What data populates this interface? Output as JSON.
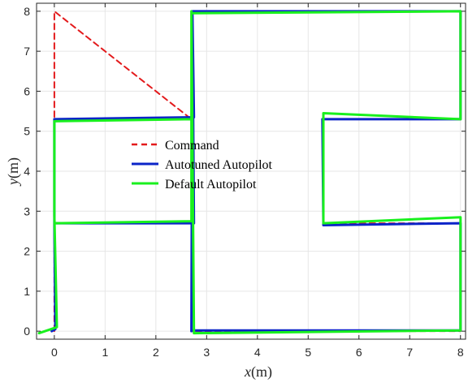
{
  "chart_data": {
    "type": "line",
    "xlabel": "x(m)",
    "ylabel": "y(m)",
    "xlabel_italic": "x",
    "xlabel_rest": "(m)",
    "ylabel_italic": "y",
    "ylabel_rest": "(m)",
    "xlim": [
      -0.35,
      8.1
    ],
    "ylim": [
      -0.2,
      8.2
    ],
    "xticks": [
      0,
      1,
      2,
      3,
      4,
      5,
      6,
      7,
      8
    ],
    "yticks": [
      0,
      1,
      2,
      3,
      4,
      5,
      6,
      7,
      8
    ],
    "grid": true,
    "legend_position": "center",
    "series": [
      {
        "name": "Command",
        "color": "#e31a1c",
        "style": "dashed",
        "x": [
          0,
          0,
          0,
          0,
          0,
          2.7,
          2.7,
          8,
          8,
          5.3,
          5.3,
          8,
          8,
          2.7,
          2.7,
          0
        ],
        "y": [
          0,
          2.7,
          2.7,
          5.3,
          8,
          5.3,
          8,
          8,
          5.3,
          5.3,
          2.7,
          2.7,
          0,
          0,
          2.7,
          2.7
        ]
      },
      {
        "name": "Autotuned Autopilot",
        "color": "#0b24c8",
        "style": "solid",
        "x": [
          -0.05,
          0.02,
          0.0,
          0.0,
          2.75,
          2.72,
          2.7,
          2.75,
          8.0,
          8.0,
          5.3,
          5.28,
          8.0,
          8.0,
          2.72,
          2.75,
          0.0
        ],
        "y": [
          0.0,
          0.05,
          2.7,
          5.3,
          5.35,
          8.0,
          0.0,
          0.02,
          0.02,
          2.7,
          2.65,
          5.3,
          5.3,
          8.0,
          8.0,
          2.7,
          2.7
        ]
      },
      {
        "name": "Default Autopilot",
        "color": "#19f01e",
        "style": "solid",
        "x": [
          -0.3,
          0.05,
          0.0,
          0.0,
          2.7,
          2.7,
          2.75,
          8.0,
          8.0,
          5.3,
          5.3,
          8.0,
          8.0,
          2.7,
          2.7,
          0.0
        ],
        "y": [
          -0.05,
          0.1,
          2.9,
          5.25,
          5.3,
          8.0,
          -0.05,
          0.02,
          2.85,
          2.7,
          5.45,
          5.3,
          8.0,
          7.95,
          2.75,
          2.7
        ]
      }
    ],
    "legend": [
      "Command",
      "Autotuned Autopilot",
      "Default Autopilot"
    ]
  }
}
